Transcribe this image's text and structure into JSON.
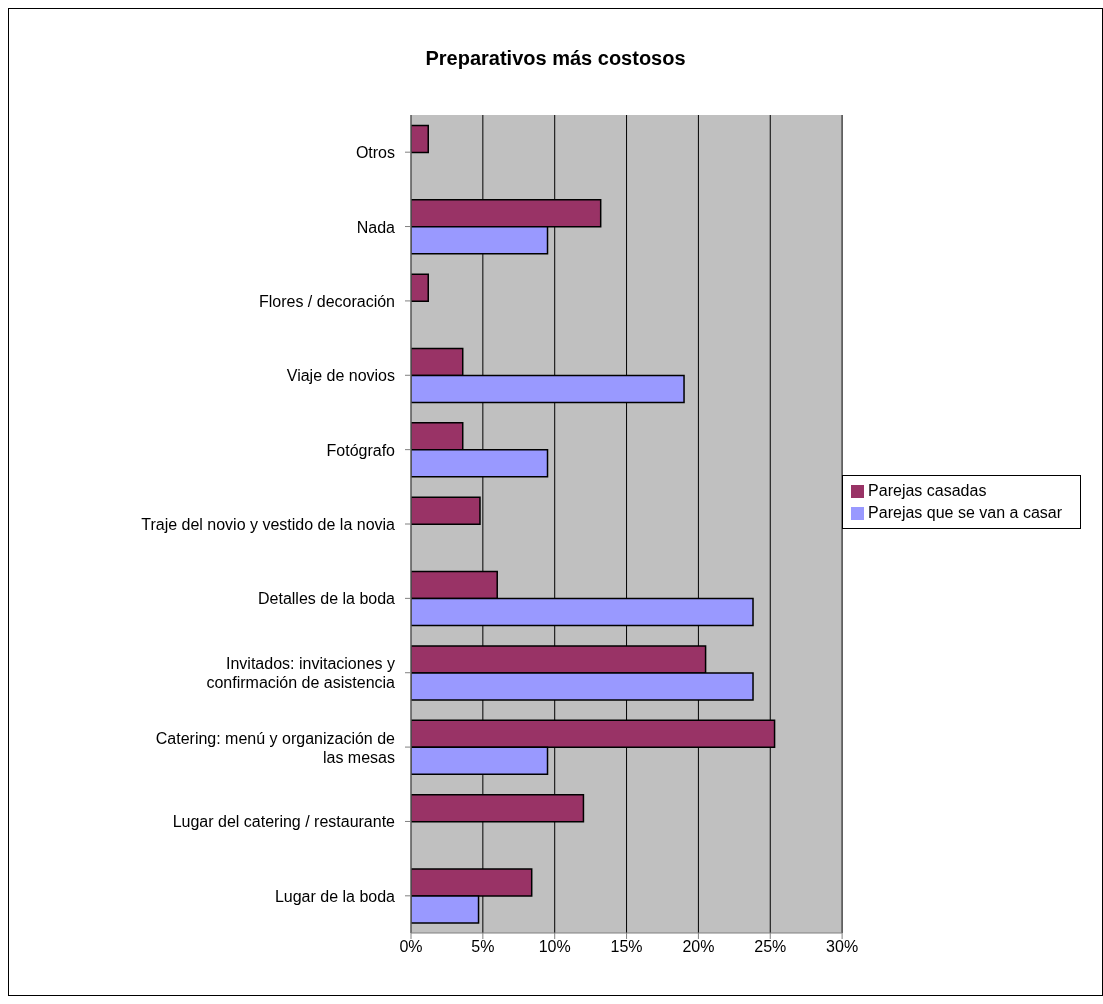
{
  "chart_data": {
    "type": "bar",
    "orientation": "horizontal",
    "title": "Preparativos más costosos",
    "categories": [
      "Otros",
      "Nada",
      "Flores / decoración",
      "Viaje de novios",
      "Fotógrafo",
      "Traje del novio y vestido de la novia",
      "Detalles de la boda",
      "Invitados: invitaciones y\nconfirmación de asistencia",
      "Catering: menú y organización de\nlas mesas",
      "Lugar del catering / restaurante",
      "Lugar de la boda"
    ],
    "series": [
      {
        "name": "Parejas casadas",
        "color": "#993366",
        "values": [
          1.2,
          13.2,
          1.2,
          3.6,
          3.6,
          4.8,
          6.0,
          20.5,
          25.3,
          12.0,
          8.4
        ]
      },
      {
        "name": "Parejas que se van a casar",
        "color": "#9999ff",
        "values": [
          null,
          9.5,
          null,
          19.0,
          9.5,
          null,
          23.8,
          23.8,
          9.5,
          null,
          4.7
        ]
      }
    ],
    "xlim": [
      0,
      30
    ],
    "xticks": [
      {
        "value": 0,
        "label": "0%"
      },
      {
        "value": 5,
        "label": "5%"
      },
      {
        "value": 10,
        "label": "10%"
      },
      {
        "value": 15,
        "label": "15%"
      },
      {
        "value": 20,
        "label": "20%"
      },
      {
        "value": 25,
        "label": "25%"
      },
      {
        "value": 30,
        "label": "30%"
      }
    ],
    "grid": "x",
    "legend": "right"
  }
}
